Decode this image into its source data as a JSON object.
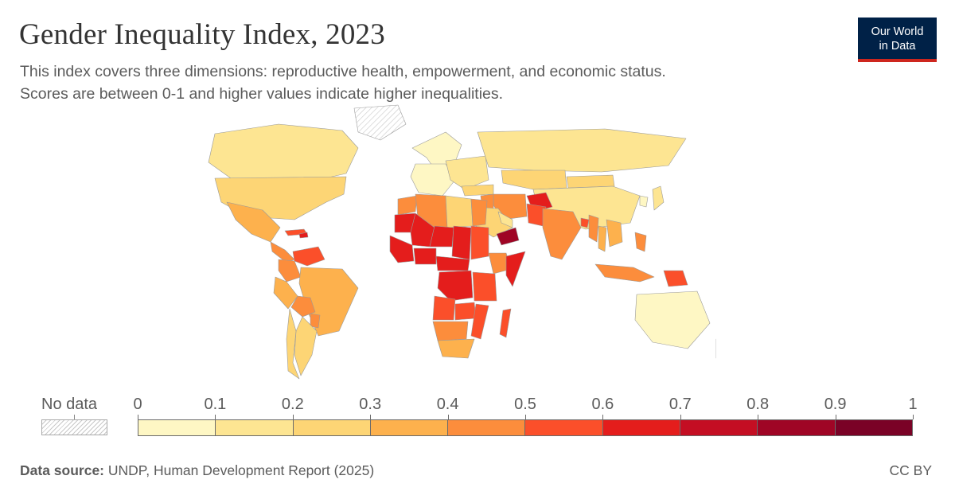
{
  "header": {
    "title": "Gender Inequality Index, 2023",
    "subtitle_line1": "This index covers three dimensions: reproductive health, empowerment, and economic status.",
    "subtitle_line2": "Scores are between 0-1 and higher values indicate higher inequalities."
  },
  "logo": {
    "line1": "Our World",
    "line2": "in Data"
  },
  "legend": {
    "no_data_label": "No data",
    "ticks": [
      "0",
      "0.1",
      "0.2",
      "0.3",
      "0.4",
      "0.5",
      "0.6",
      "0.7",
      "0.8",
      "0.9",
      "1"
    ],
    "bin_colors": [
      "#fef7c4",
      "#fde592",
      "#fdd575",
      "#fdb14d",
      "#fc8d3c",
      "#fb4f2a",
      "#e41d1c",
      "#c40e23",
      "#9f0525",
      "#7a0226"
    ]
  },
  "footer": {
    "source_label": "Data source:",
    "source_text": "UNDP, Human Development Report (2025)",
    "license": "CC BY"
  },
  "chart_data": {
    "type": "choropleth",
    "title": "Gender Inequality Index, 2023",
    "value_range": [
      0,
      1
    ],
    "bins": [
      0,
      0.1,
      0.2,
      0.3,
      0.4,
      0.5,
      0.6,
      0.7,
      0.8,
      0.9,
      1
    ],
    "regions": [
      {
        "name": "Canada",
        "bin": 1
      },
      {
        "name": "United States",
        "bin": 2
      },
      {
        "name": "Mexico",
        "bin": 3
      },
      {
        "name": "Central America",
        "bin": 4
      },
      {
        "name": "Caribbean",
        "bin": 5
      },
      {
        "name": "Haiti",
        "bin": 6
      },
      {
        "name": "Venezuela",
        "bin": 5
      },
      {
        "name": "Colombia",
        "bin": 4
      },
      {
        "name": "Brazil",
        "bin": 3
      },
      {
        "name": "Peru",
        "bin": 3
      },
      {
        "name": "Bolivia",
        "bin": 4
      },
      {
        "name": "Paraguay",
        "bin": 4
      },
      {
        "name": "Argentina",
        "bin": 2
      },
      {
        "name": "Chile",
        "bin": 2
      },
      {
        "name": "Greenland",
        "bin": null
      },
      {
        "name": "Iceland & Scandinavia",
        "bin": 0
      },
      {
        "name": "Western Europe",
        "bin": 0
      },
      {
        "name": "Eastern Europe",
        "bin": 1
      },
      {
        "name": "Russia",
        "bin": 1
      },
      {
        "name": "Kazakhstan",
        "bin": 2
      },
      {
        "name": "Mongolia",
        "bin": 2
      },
      {
        "name": "China",
        "bin": 1
      },
      {
        "name": "Japan",
        "bin": 1
      },
      {
        "name": "Korea",
        "bin": 0
      },
      {
        "name": "Turkey",
        "bin": 2
      },
      {
        "name": "Iran",
        "bin": 4
      },
      {
        "name": "Iraq",
        "bin": 4
      },
      {
        "name": "Saudi Arabia",
        "bin": 2
      },
      {
        "name": "Arabian Gulf states",
        "bin": 1
      },
      {
        "name": "Yemen",
        "bin": 8
      },
      {
        "name": "Afghanistan",
        "bin": 6
      },
      {
        "name": "Pakistan",
        "bin": 5
      },
      {
        "name": "India",
        "bin": 4
      },
      {
        "name": "Bangladesh",
        "bin": 5
      },
      {
        "name": "Myanmar",
        "bin": 4
      },
      {
        "name": "Thailand",
        "bin": 3
      },
      {
        "name": "Indochina",
        "bin": 3
      },
      {
        "name": "Indonesia",
        "bin": 4
      },
      {
        "name": "Philippines",
        "bin": 4
      },
      {
        "name": "Papua New Guinea",
        "bin": 5
      },
      {
        "name": "Australia",
        "bin": 0
      },
      {
        "name": "New Zealand",
        "bin": 1
      },
      {
        "name": "Morocco",
        "bin": 4
      },
      {
        "name": "Algeria",
        "bin": 4
      },
      {
        "name": "Libya",
        "bin": 2
      },
      {
        "name": "Egypt",
        "bin": 4
      },
      {
        "name": "Mauritania",
        "bin": 6
      },
      {
        "name": "Mali",
        "bin": 6
      },
      {
        "name": "Niger",
        "bin": 6
      },
      {
        "name": "Chad",
        "bin": 6
      },
      {
        "name": "Sudan",
        "bin": 5
      },
      {
        "name": "West Africa coast",
        "bin": 6
      },
      {
        "name": "Nigeria",
        "bin": 6
      },
      {
        "name": "Central African Rep.",
        "bin": 6
      },
      {
        "name": "Ethiopia",
        "bin": 4
      },
      {
        "name": "Somalia",
        "bin": 6
      },
      {
        "name": "DR Congo",
        "bin": 6
      },
      {
        "name": "East Africa",
        "bin": 5
      },
      {
        "name": "Angola",
        "bin": 5
      },
      {
        "name": "Zambia",
        "bin": 5
      },
      {
        "name": "Mozambique",
        "bin": 5
      },
      {
        "name": "Madagascar",
        "bin": 5
      },
      {
        "name": "Namibia & Botswana",
        "bin": 4
      },
      {
        "name": "South Africa",
        "bin": 3
      }
    ]
  }
}
